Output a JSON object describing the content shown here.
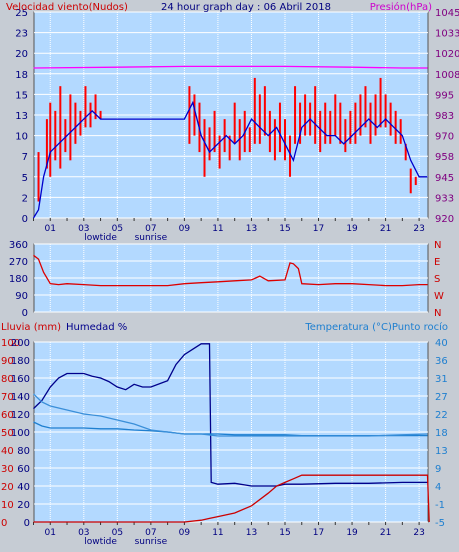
{
  "chart_data": [
    {
      "type": "line",
      "title": "24 hour graph day : 06 Abril 2018",
      "left_label": "Velocidad viento(Nudos)",
      "right_label": "Presión(hPa)",
      "x_ticks": [
        "01",
        "03",
        "05",
        "07",
        "09",
        "11",
        "13",
        "15",
        "17",
        "19",
        "21",
        "23"
      ],
      "x_annotations": [
        {
          "text": "lowtide",
          "at": "04"
        },
        {
          "text": "sunrise",
          "at": "07"
        }
      ],
      "y_ticks_left": [
        0,
        2,
        5,
        7,
        10,
        13,
        15,
        18,
        20,
        23,
        25
      ],
      "y_ticks_right": [
        920,
        933,
        945,
        958,
        970,
        983,
        995,
        1008,
        1020,
        1033,
        1045
      ],
      "ylim_left": [
        0,
        25
      ],
      "ylim_right": [
        920,
        1045
      ],
      "series": [
        {
          "color": "#ff0000",
          "axis": "left",
          "style": "bars",
          "x": [
            0.3,
            0.8,
            1.0,
            1.3,
            1.6,
            1.9,
            2.2,
            2.5,
            2.8,
            3.1,
            3.4,
            3.7,
            4.0,
            9.3,
            9.6,
            9.9,
            10.2,
            10.5,
            10.8,
            11.1,
            11.4,
            11.7,
            12.0,
            12.3,
            12.6,
            12.9,
            13.2,
            13.5,
            13.8,
            14.1,
            14.4,
            14.7,
            15.0,
            15.3,
            15.6,
            15.9,
            16.2,
            16.5,
            16.8,
            17.1,
            17.4,
            17.7,
            18.0,
            18.3,
            18.6,
            18.9,
            19.2,
            19.5,
            19.8,
            20.1,
            20.4,
            20.7,
            21.0,
            21.3,
            21.6,
            21.9,
            22.2,
            22.5,
            22.8
          ],
          "y_low": [
            2,
            6,
            5,
            7,
            6,
            8,
            7,
            9,
            10,
            11,
            11,
            12,
            12,
            9,
            10,
            8,
            5,
            7,
            8,
            6,
            8,
            7,
            9,
            7,
            8,
            8,
            9,
            9,
            10,
            8,
            7,
            8,
            7,
            5,
            9,
            9,
            10,
            10,
            9,
            8,
            9,
            9,
            10,
            9,
            8,
            9,
            9,
            10,
            11,
            9,
            10,
            11,
            11,
            10,
            9,
            9,
            7,
            3,
            4
          ],
          "y_high": [
            8,
            12,
            14,
            13,
            16,
            12,
            15,
            14,
            13,
            16,
            14,
            15,
            13,
            16,
            15,
            14,
            12,
            11,
            13,
            10,
            12,
            10,
            14,
            12,
            13,
            11,
            17,
            15,
            16,
            13,
            12,
            14,
            12,
            10,
            16,
            14,
            15,
            14,
            16,
            13,
            14,
            13,
            15,
            14,
            12,
            13,
            14,
            15,
            16,
            14,
            15,
            17,
            15,
            14,
            13,
            12,
            9,
            6,
            5
          ]
        },
        {
          "color": "#0000cc",
          "axis": "left",
          "x": [
            0,
            0.3,
            0.6,
            1.0,
            1.5,
            2.0,
            2.5,
            3.0,
            3.5,
            4.0,
            9.0,
            9.5,
            10.0,
            10.5,
            11.0,
            11.5,
            12.0,
            12.5,
            13.0,
            13.5,
            14.0,
            14.5,
            15.0,
            15.5,
            16.0,
            16.5,
            17.0,
            17.5,
            18.0,
            18.5,
            19.0,
            19.5,
            20.0,
            20.5,
            21.0,
            21.5,
            22.0,
            22.5,
            23.0,
            23.5
          ],
          "y": [
            0,
            1,
            5,
            8,
            9,
            10,
            11,
            12,
            13,
            12,
            12,
            14,
            10,
            8,
            9,
            10,
            9,
            10,
            12,
            11,
            10,
            11,
            9,
            7,
            11,
            12,
            11,
            10,
            10,
            9,
            10,
            11,
            12,
            11,
            12,
            11,
            10,
            7,
            5,
            5
          ]
        },
        {
          "color": "#ff00ff",
          "axis": "right",
          "x": [
            0,
            5,
            9,
            15,
            19,
            22,
            23.5
          ],
          "y": [
            1011,
            1011.5,
            1012,
            1012,
            1011.5,
            1011,
            1011
          ]
        }
      ]
    },
    {
      "type": "line",
      "y_ticks_left": [
        0,
        90,
        180,
        270,
        360
      ],
      "y_ticks_right": [
        "N",
        "W",
        "S",
        "E",
        "N"
      ],
      "x_ticks": [],
      "ylim": [
        0,
        360
      ],
      "series": [
        {
          "color": "#dd0000",
          "x": [
            0,
            0.3,
            0.6,
            1.0,
            1.5,
            2.0,
            3.0,
            4.0,
            5.0,
            6.0,
            7.0,
            8.0,
            9.0,
            10.0,
            11.0,
            12.0,
            13.0,
            13.5,
            14.0,
            15.0,
            15.3,
            15.5,
            15.8,
            16.0,
            17.0,
            18.0,
            19.0,
            20.0,
            21.0,
            22.0,
            23.0,
            23.5
          ],
          "y": [
            300,
            280,
            210,
            150,
            145,
            150,
            145,
            140,
            140,
            140,
            140,
            140,
            150,
            155,
            160,
            165,
            170,
            190,
            165,
            170,
            260,
            255,
            230,
            150,
            145,
            150,
            150,
            145,
            140,
            140,
            145,
            145
          ]
        }
      ]
    },
    {
      "type": "line",
      "left_label": "Lluvia (mm)",
      "left2_label": "Humedad %",
      "right_label": "Temperatura (°C)Punto rocío",
      "x_ticks": [
        "01",
        "03",
        "05",
        "07",
        "09",
        "11",
        "13",
        "15",
        "17",
        "19",
        "21",
        "23"
      ],
      "x_annotations": [
        {
          "text": "lowtide",
          "at": "04"
        },
        {
          "text": "sunrise",
          "at": "07"
        }
      ],
      "y_ticks_left": [
        0,
        10,
        20,
        30,
        40,
        50,
        60,
        70,
        80,
        90,
        100
      ],
      "y_ticks_left2": [
        0,
        20,
        40,
        60,
        80,
        100,
        120,
        140,
        160,
        180,
        200
      ],
      "y_ticks_right": [
        -5,
        -1,
        4,
        9,
        13,
        18,
        22,
        27,
        31,
        36,
        40
      ],
      "ylim_left": [
        0,
        100
      ],
      "ylim_left2": [
        0,
        200
      ],
      "ylim_right": [
        -5,
        40
      ],
      "series": [
        {
          "color": "#00008b",
          "axis": "left2",
          "x": [
            0,
            0.5,
            1.0,
            1.5,
            2.0,
            3.0,
            3.5,
            4.0,
            4.5,
            5.0,
            5.5,
            6.0,
            6.5,
            7.0,
            8.0,
            8.5,
            9.0,
            9.5,
            10.0,
            10.3,
            10.5,
            10.6,
            11.0,
            12.0,
            13.0,
            13.5,
            14.0,
            14.5,
            15.0,
            16.0,
            18.0,
            20.0,
            22.0,
            23.5
          ],
          "y": [
            126,
            135,
            150,
            160,
            165,
            165,
            162,
            160,
            156,
            150,
            147,
            153,
            150,
            150,
            157,
            175,
            186,
            192,
            198,
            198,
            198,
            44,
            42,
            43,
            40,
            40,
            40,
            40,
            42,
            42,
            43,
            43,
            44,
            44
          ]
        },
        {
          "color": "#1e7fd0",
          "axis": "right",
          "x": [
            0,
            0.5,
            1.0,
            2.0,
            3.0,
            4.0,
            5.0,
            6.0,
            7.0,
            8.0,
            9.0,
            10.0,
            11.0,
            12.0,
            13.0,
            14.0,
            15.0,
            16.0,
            18.0,
            20.0,
            22.0,
            23.5
          ],
          "y": [
            20,
            19,
            18.5,
            18.5,
            18.5,
            18.3,
            18.3,
            18,
            17.8,
            17.5,
            17,
            17,
            17,
            16.8,
            16.8,
            16.8,
            16.8,
            16.6,
            16.6,
            16.6,
            16.6,
            16.6
          ]
        },
        {
          "color": "#3a8fd9",
          "axis": "right",
          "x": [
            0,
            0.5,
            1.0,
            2.0,
            3.0,
            4.0,
            5.0,
            6.0,
            7.0,
            8.0,
            9.0,
            10.0,
            11.0,
            12.0,
            13.0,
            14.0,
            15.0,
            16.0,
            18.0,
            20.0,
            22.0,
            23.5
          ],
          "y": [
            27,
            25,
            24,
            23,
            22,
            21.5,
            20.5,
            19.5,
            18,
            17.5,
            17,
            17,
            16.5,
            16.5,
            16.5,
            16.5,
            16.5,
            16.5,
            16.5,
            16.5,
            16.8,
            17
          ]
        },
        {
          "color": "#cc0000",
          "axis": "left",
          "x": [
            0,
            2,
            4,
            6,
            8,
            9,
            10,
            10.5,
            11,
            12,
            13,
            14,
            14.5,
            15,
            15.5,
            16,
            18,
            20,
            22,
            23.5,
            23.6
          ],
          "y": [
            0,
            0,
            0,
            0,
            0,
            0,
            1,
            2,
            3,
            5,
            9,
            16,
            20,
            22,
            24,
            26,
            26,
            26,
            26,
            26,
            0
          ]
        }
      ]
    }
  ]
}
